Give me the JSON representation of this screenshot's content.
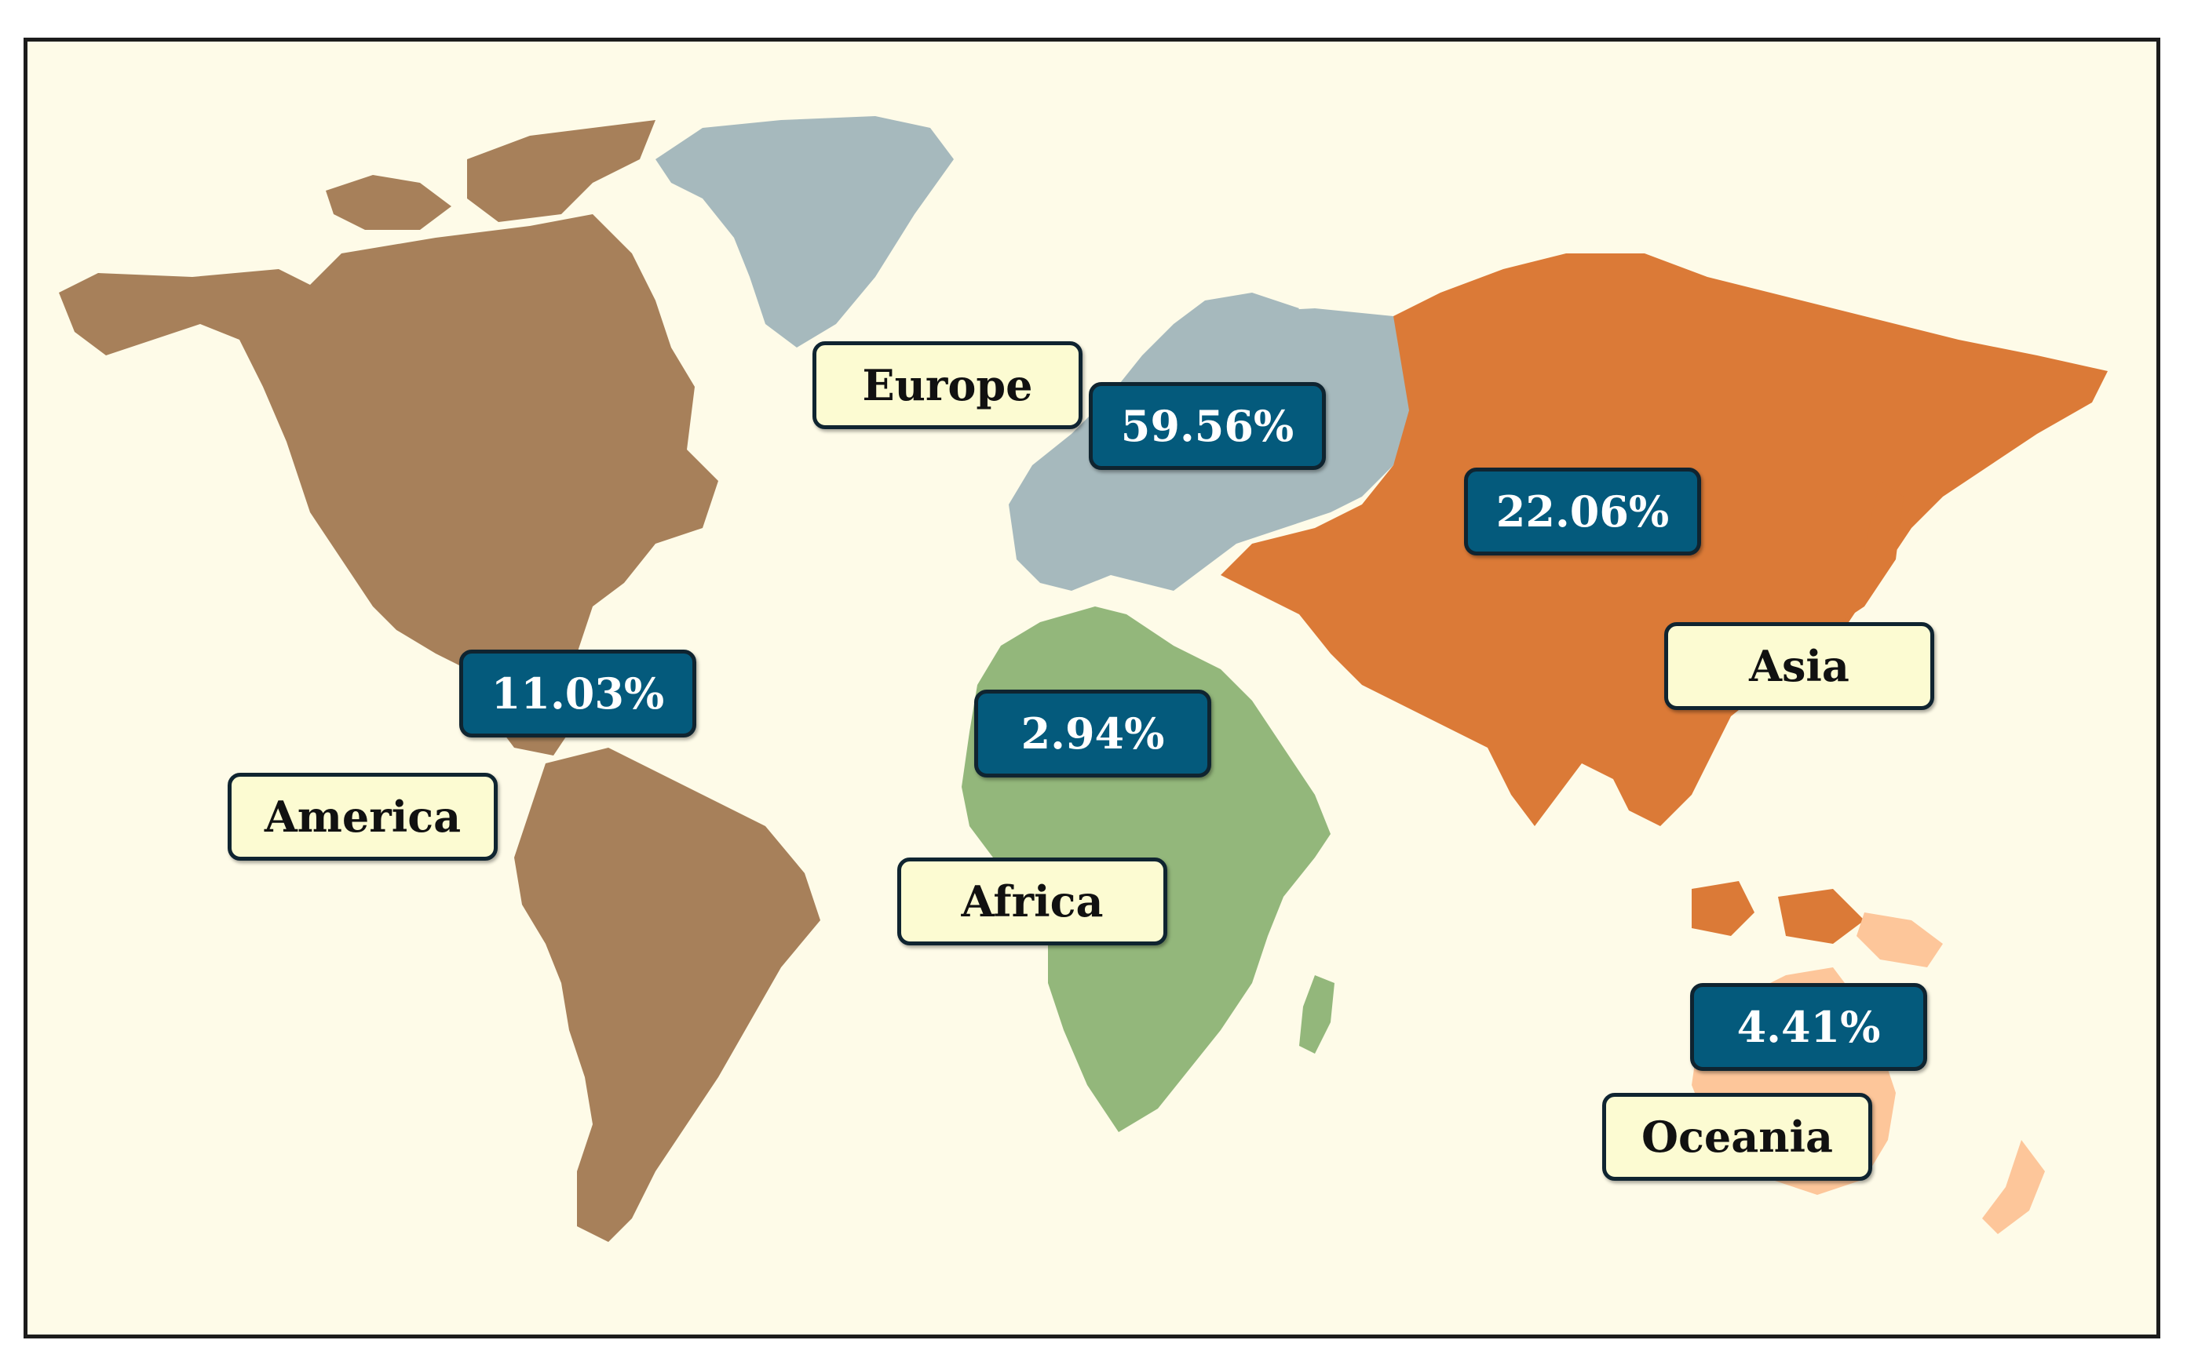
{
  "regions": [
    {
      "id": "america",
      "name": "America",
      "percent": "11.03%",
      "color": "#a7805a"
    },
    {
      "id": "europe",
      "name": "Europe",
      "percent": "59.56%",
      "color": "#a6b9bd"
    },
    {
      "id": "africa",
      "name": "Africa",
      "percent": "2.94%",
      "color": "#93b77b"
    },
    {
      "id": "asia",
      "name": "Asia",
      "percent": "22.06%",
      "color": "#db7a37"
    },
    {
      "id": "oceania",
      "name": "Oceania",
      "percent": "4.41%",
      "color": "#fdc69a"
    }
  ],
  "colors": {
    "background": "#fefbe8",
    "name_tag_fill": "#fcfbd2",
    "percent_tag_fill": "#045a7c",
    "tag_border": "#0f2430",
    "frame_border": "#1c1c1c"
  }
}
